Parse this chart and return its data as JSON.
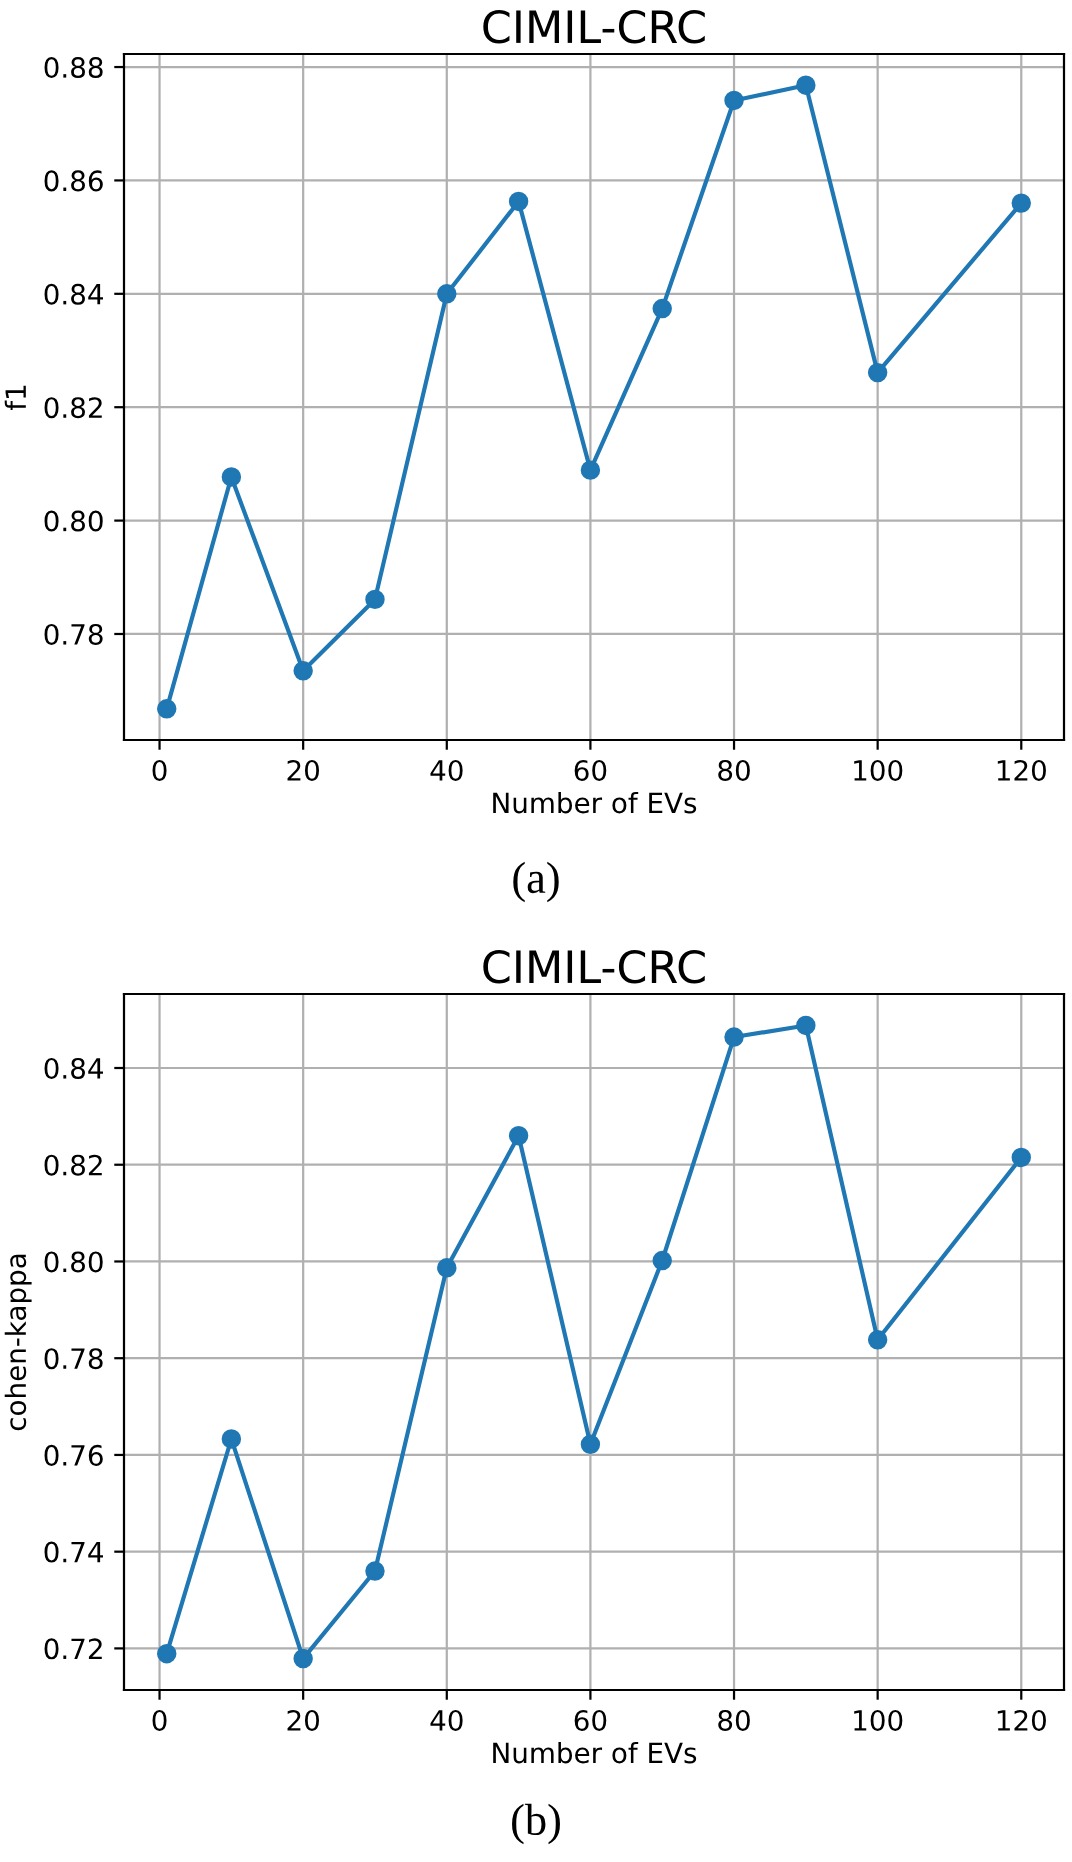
{
  "chart_data": [
    {
      "type": "line",
      "title": "CIMIL-CRC",
      "xlabel": "Number of EVs",
      "ylabel": "f1",
      "annotations": [
        "(a)"
      ],
      "x": [
        1,
        10,
        20,
        30,
        40,
        50,
        60,
        70,
        80,
        90,
        100,
        120
      ],
      "series": [
        {
          "color": "#1f77b4",
          "values": [
            0.7668,
            0.8077,
            0.7735,
            0.7861,
            0.84,
            0.8563,
            0.8089,
            0.8374,
            0.8741,
            0.8768,
            0.8261,
            0.856
          ]
        }
      ],
      "xlim": [
        -4.95,
        125.95
      ],
      "xticks": [
        0,
        20,
        40,
        60,
        80,
        100,
        120
      ],
      "ylim": [
        0.7613,
        0.8823
      ],
      "yticks": [
        {
          "value": 0.78,
          "label": "0.78"
        },
        {
          "value": 0.8,
          "label": "0.80"
        },
        {
          "value": 0.82,
          "label": "0.82"
        },
        {
          "value": 0.84,
          "label": "0.84"
        },
        {
          "value": 0.86,
          "label": "0.86"
        },
        {
          "value": 0.88,
          "label": "0.88"
        }
      ],
      "grid": true,
      "marker": "circle",
      "line_style": "solid"
    },
    {
      "type": "line",
      "title": "CIMIL-CRC",
      "xlabel": "Number of EVs",
      "ylabel": "cohen-kappa",
      "annotations": [
        "(b)"
      ],
      "x": [
        1,
        10,
        20,
        30,
        40,
        50,
        60,
        70,
        80,
        90,
        100,
        120
      ],
      "series": [
        {
          "color": "#1f77b4",
          "values": [
            0.7189,
            0.7633,
            0.7179,
            0.736,
            0.7987,
            0.826,
            0.7622,
            0.8002,
            0.8464,
            0.8488,
            0.7838,
            0.8215
          ]
        }
      ],
      "xlim": [
        -4.95,
        125.95
      ],
      "xticks": [
        0,
        20,
        40,
        60,
        80,
        100,
        120
      ],
      "ylim": [
        0.7114,
        0.8553
      ],
      "yticks": [
        {
          "value": 0.72,
          "label": "0.72"
        },
        {
          "value": 0.74,
          "label": "0.74"
        },
        {
          "value": 0.76,
          "label": "0.76"
        },
        {
          "value": 0.78,
          "label": "0.78"
        },
        {
          "value": 0.8,
          "label": "0.80"
        },
        {
          "value": 0.82,
          "label": "0.82"
        },
        {
          "value": 0.84,
          "label": "0.84"
        }
      ],
      "grid": true,
      "marker": "circle",
      "line_style": "solid"
    }
  ]
}
